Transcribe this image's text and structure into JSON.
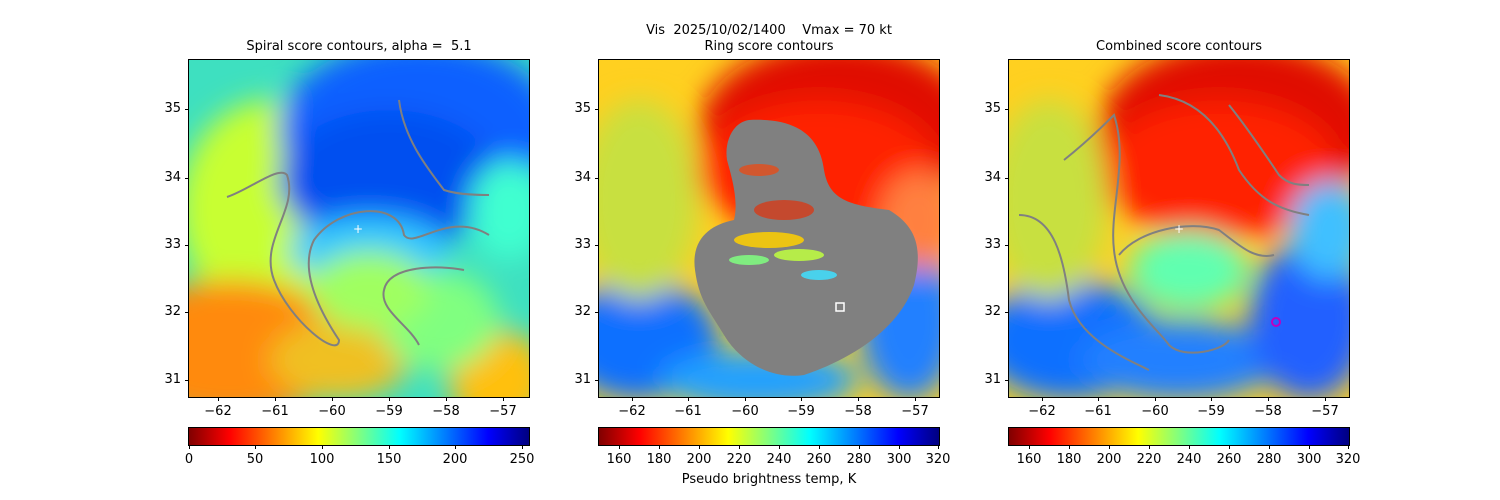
{
  "figure": {
    "suptitle": "Vis  2025/10/02/1400    Vmax = 70 kt"
  },
  "chart_data": [
    {
      "type": "heatmap",
      "title": "Spiral score contours, alpha =  5.1",
      "xlim": [
        -62.5,
        -56.5
      ],
      "ylim": [
        30.7,
        35.7
      ],
      "xticks": [
        "−62",
        "−61",
        "−60",
        "−59",
        "−58",
        "−57"
      ],
      "yticks": [
        "31",
        "32",
        "33",
        "34",
        "35"
      ],
      "colorbar": {
        "range": [
          0,
          255
        ],
        "ticks": [
          "0",
          "50",
          "100",
          "150",
          "200",
          "250"
        ],
        "colormap": "jet_r",
        "label": ""
      },
      "contour_color": "#808080",
      "marker": {
        "x": -59.5,
        "y": 33.25,
        "symbol": "+"
      }
    },
    {
      "type": "heatmap",
      "title": "Ring score contours",
      "xlim": [
        -62.5,
        -56.5
      ],
      "ylim": [
        30.7,
        35.7
      ],
      "xticks": [
        "−62",
        "−61",
        "−60",
        "−59",
        "−58",
        "−57"
      ],
      "yticks": [
        "31",
        "32",
        "33",
        "34",
        "35"
      ],
      "colorbar": {
        "range": [
          150,
          320
        ],
        "ticks": [
          "160",
          "180",
          "200",
          "220",
          "240",
          "260",
          "280",
          "300",
          "320"
        ],
        "colormap": "jet",
        "label": "Pseudo brightness temp, K"
      },
      "contour_color": "#808080",
      "marker": {
        "x": -58.3,
        "y": 32.05,
        "symbol": "square"
      }
    },
    {
      "type": "heatmap",
      "title": "Combined score contours",
      "xlim": [
        -62.5,
        -56.5
      ],
      "ylim": [
        30.7,
        35.7
      ],
      "xticks": [
        "−62",
        "−61",
        "−60",
        "−59",
        "−58",
        "−57"
      ],
      "yticks": [
        "31",
        "32",
        "33",
        "34",
        "35"
      ],
      "colorbar": {
        "range": [
          150,
          320
        ],
        "ticks": [
          "160",
          "180",
          "200",
          "220",
          "240",
          "260",
          "280",
          "300",
          "320"
        ],
        "colormap": "jet",
        "label": ""
      },
      "contour_color": "#808080",
      "marker": {
        "x": -57.95,
        "y": 31.85,
        "symbol": "circle"
      }
    }
  ]
}
